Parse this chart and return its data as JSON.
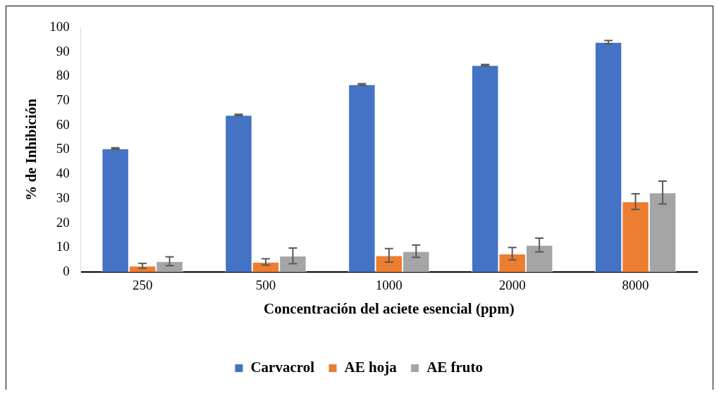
{
  "chart_data": {
    "type": "bar",
    "xlabel": "Concentración del aciete esencial (ppm)",
    "ylabel": "% de Inhibición",
    "categories": [
      "250",
      "500",
      "1000",
      "2000",
      "8000"
    ],
    "series": [
      {
        "name": "Carvacrol",
        "color": "#4472c4",
        "values": [
          50.5,
          64.2,
          76.7,
          84.6,
          94.0
        ],
        "errors": [
          0.3,
          0.3,
          0.3,
          0.3,
          0.7
        ]
      },
      {
        "name": "AE hoja",
        "color": "#ed7d31",
        "values": [
          2.5,
          4.1,
          6.8,
          7.5,
          28.8
        ],
        "errors": [
          1.0,
          1.3,
          2.8,
          2.5,
          3.2
        ]
      },
      {
        "name": "AE fruto",
        "color": "#a5a5a5",
        "values": [
          4.4,
          6.6,
          8.5,
          11.0,
          32.5
        ],
        "errors": [
          1.8,
          3.2,
          2.5,
          2.8,
          4.7
        ]
      }
    ],
    "ylim": [
      0,
      100
    ],
    "yticks": [
      0,
      10,
      20,
      30,
      40,
      50,
      60,
      70,
      80,
      90,
      100
    ],
    "grid": false,
    "legend": "bottom"
  }
}
